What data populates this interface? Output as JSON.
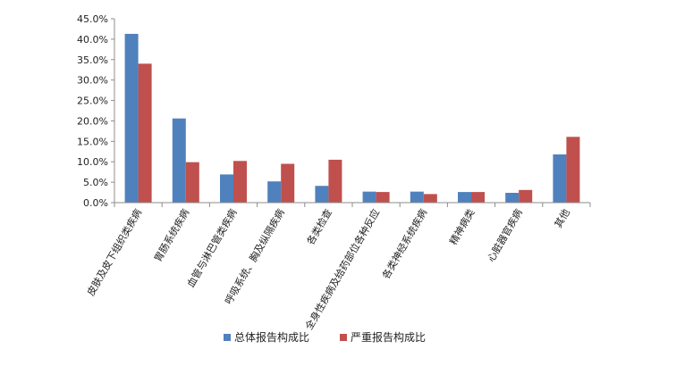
{
  "chart_data": {
    "type": "bar",
    "categories": [
      "皮肤及皮下组织类疾病",
      "胃肠系统疾病",
      "血管与淋巴管类疾病",
      "呼吸系统、胸及纵隔疾病",
      "各类检查",
      "全身性疾病及给药部位各种反应",
      "各类神经系统疾病",
      "精神病类",
      "心脏器官疾病",
      "其他"
    ],
    "series": [
      {
        "name": "总体报告构成比",
        "color": "#4F81BD",
        "values": [
          41.3,
          20.6,
          6.9,
          5.2,
          4.1,
          2.7,
          2.7,
          2.6,
          2.4,
          11.8
        ]
      },
      {
        "name": "严重报告构成比",
        "color": "#C0504D",
        "values": [
          34.0,
          9.9,
          10.2,
          9.5,
          10.5,
          2.6,
          2.1,
          2.6,
          3.1,
          16.1
        ]
      }
    ],
    "yticks": [
      "0.0%",
      "5.0%",
      "10.0%",
      "15.0%",
      "20.0%",
      "25.0%",
      "30.0%",
      "35.0%",
      "40.0%",
      "45.0%"
    ],
    "ylim": [
      0,
      45
    ],
    "grid": false,
    "legend_position": "bottom"
  }
}
